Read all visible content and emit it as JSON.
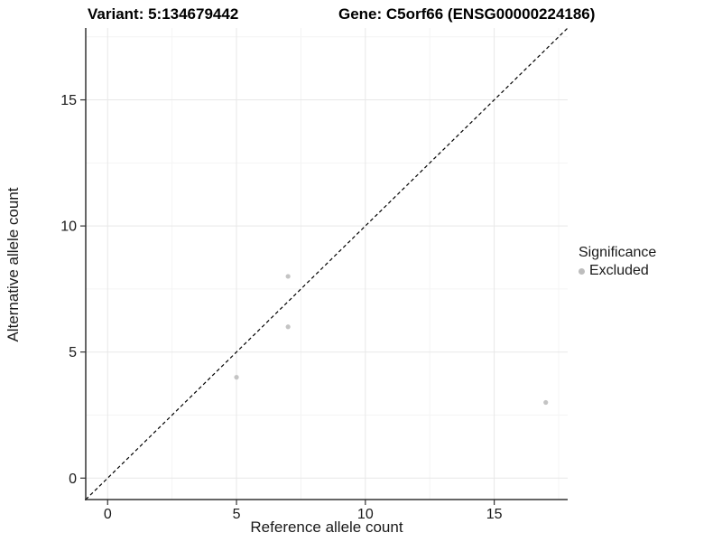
{
  "titles": {
    "variant": "Variant: 5:134679442",
    "gene": "Gene: C5orf66 (ENSG00000224186)"
  },
  "legend": {
    "title": "Significance",
    "items": [
      {
        "label": "Excluded",
        "color": "#bdbdbd"
      }
    ]
  },
  "chart_data": {
    "type": "scatter",
    "title": "Variant: 5:134679442 | Gene: C5orf66 (ENSG00000224186)",
    "xlabel": "Reference allele count",
    "ylabel": "Alternative allele count",
    "series": [
      {
        "name": "Excluded",
        "color": "#c4c4c4",
        "points": [
          [
            5,
            4
          ],
          [
            7,
            6
          ],
          [
            7,
            8
          ],
          [
            17,
            3
          ]
        ]
      }
    ],
    "identity_line": {
      "style": "dashed",
      "from": [
        -0.85,
        -0.85
      ],
      "to": [
        17.85,
        17.85
      ],
      "color": "#000000"
    },
    "x_ticks": [
      0,
      5,
      10,
      15
    ],
    "y_ticks": [
      0,
      5,
      10,
      15
    ],
    "x_minor_ticks": [
      2.5,
      7.5,
      12.5,
      17.5
    ],
    "y_minor_ticks": [
      2.5,
      7.5,
      12.5,
      17.5
    ],
    "xlim": [
      -0.85,
      17.85
    ],
    "ylim": [
      -0.85,
      17.85
    ],
    "grid": true,
    "legend_position": "right",
    "colors": {
      "grid_major": "#e8e8e8",
      "grid_minor": "#f4f4f4",
      "axis_line": "#333333",
      "tick_mark": "#333333",
      "tick_label": "#1a1a1a",
      "point_fill": "#c4c4c4"
    }
  }
}
